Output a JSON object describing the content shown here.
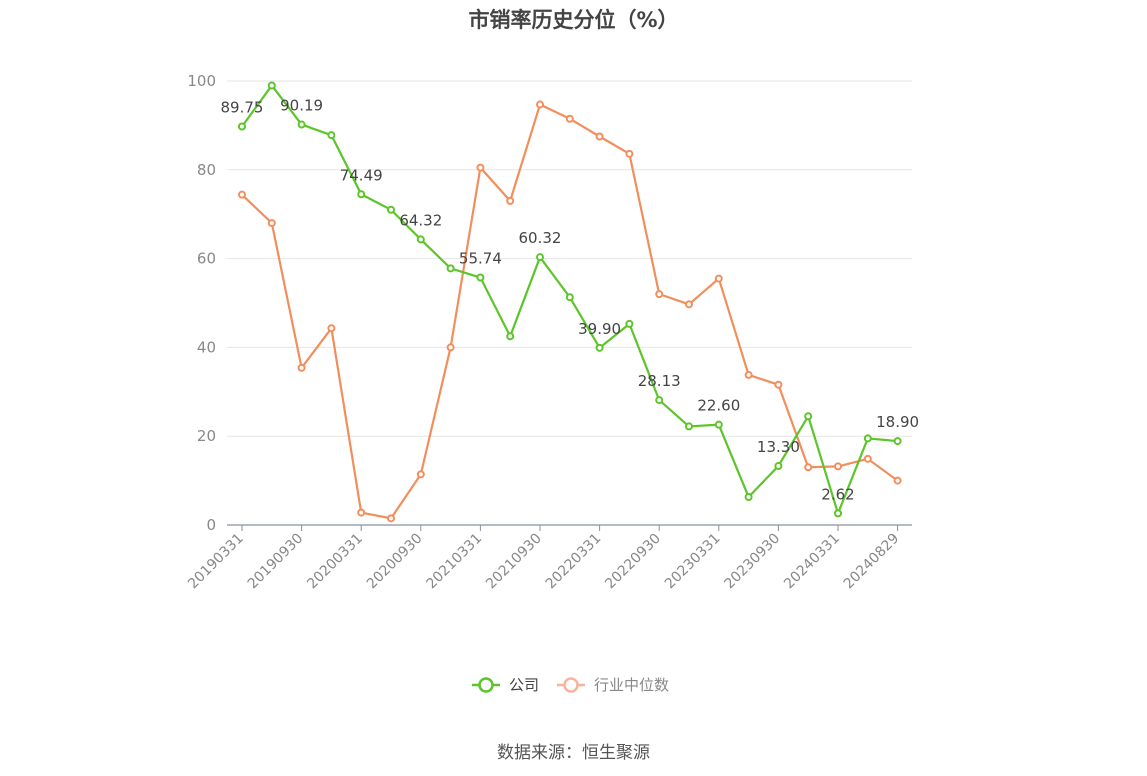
{
  "chart_data": {
    "type": "line",
    "title": "市销率历史分位（%）",
    "source": "数据来源：恒生聚源",
    "ylim": [
      0,
      100
    ],
    "yticks": [
      0,
      20,
      40,
      60,
      80,
      100
    ],
    "grid": true,
    "legend_position": "bottom",
    "x_tick_labels": [
      "20190331",
      "20190930",
      "20200331",
      "20200930",
      "20210331",
      "20210930",
      "20220331",
      "20220930",
      "20230331",
      "20230930",
      "20240331",
      "20240829"
    ],
    "x": [
      "20190331",
      "20190630",
      "20190930",
      "20191231",
      "20200331",
      "20200630",
      "20200930",
      "20201231",
      "20210331",
      "20210630",
      "20210930",
      "20211231",
      "20220331",
      "20220630",
      "20220930",
      "20221231",
      "20230331",
      "20230630",
      "20230930",
      "20231231",
      "20240331",
      "20240630",
      "20240829"
    ],
    "series": [
      {
        "name": "公司",
        "color": "#5cc52a",
        "values": [
          89.75,
          99.0,
          90.19,
          87.8,
          74.49,
          71.0,
          64.32,
          57.8,
          55.74,
          42.5,
          60.32,
          51.3,
          39.9,
          45.3,
          28.13,
          22.2,
          22.6,
          6.3,
          13.3,
          24.5,
          2.62,
          19.5,
          18.9
        ],
        "labels": [
          "89.75",
          "",
          "90.19",
          "",
          "74.49",
          "",
          "64.32",
          "",
          "55.74",
          "",
          "60.32",
          "",
          "39.90",
          "",
          "28.13",
          "",
          "22.60",
          "",
          "13.30",
          "",
          "2.62",
          "",
          "18.90"
        ]
      },
      {
        "name": "行业中位数",
        "color": "#f28e5c",
        "values": [
          74.4,
          68.0,
          35.4,
          44.3,
          2.8,
          1.5,
          11.4,
          40.0,
          80.5,
          73.0,
          94.7,
          91.5,
          87.5,
          83.6,
          52.0,
          49.7,
          55.5,
          33.8,
          31.6,
          13.0,
          13.2,
          14.9,
          10.0
        ]
      }
    ]
  }
}
